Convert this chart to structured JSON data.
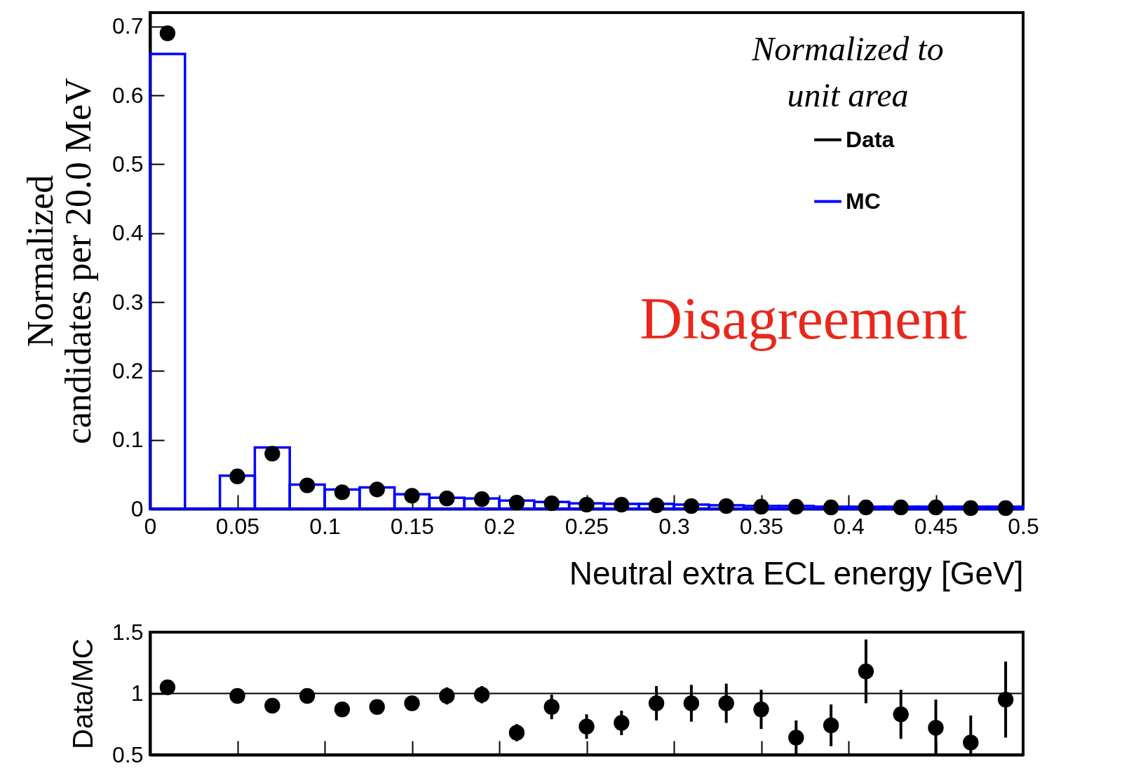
{
  "chart_data": [
    {
      "type": "histogram",
      "xlabel": "Neutral extra ECL energy [GeV]",
      "ylabel": "Normalized\ncandidates per 20.0 MeV",
      "bins": [
        0,
        0.02,
        0.04,
        0.06,
        0.08,
        0.1,
        0.12,
        0.14,
        0.16,
        0.18,
        0.2,
        0.22,
        0.24,
        0.26,
        0.28,
        0.3,
        0.32,
        0.34,
        0.36,
        0.38,
        0.4,
        0.42,
        0.44,
        0.46,
        0.48,
        0.5
      ],
      "series": [
        {
          "name": "Data",
          "type": "scatter",
          "color": "#000000",
          "x": [
            0.01,
            0.05,
            0.07,
            0.09,
            0.11,
            0.13,
            0.15,
            0.17,
            0.19,
            0.21,
            0.23,
            0.25,
            0.27,
            0.29,
            0.31,
            0.33,
            0.35,
            0.37,
            0.39,
            0.41,
            0.43,
            0.45,
            0.47,
            0.49
          ],
          "values": [
            0.69,
            0.047,
            0.08,
            0.034,
            0.024,
            0.028,
            0.019,
            0.015,
            0.014,
            0.009,
            0.008,
            0.006,
            0.006,
            0.005,
            0.004,
            0.004,
            0.003,
            0.003,
            0.002,
            0.002,
            0.002,
            0.002,
            0.001,
            0.001
          ]
        },
        {
          "name": "MC",
          "type": "histogram",
          "color": "#0000ff",
          "values": [
            0.66,
            0,
            0.048,
            0.089,
            0.035,
            0.028,
            0.031,
            0.021,
            0.016,
            0.015,
            0.012,
            0.01,
            0.008,
            0.007,
            0.007,
            0.006,
            0.005,
            0.004,
            0.004,
            0.003,
            0.003,
            0.003,
            0.003,
            0.003,
            0.003
          ]
        }
      ],
      "xlim": [
        0,
        0.5
      ],
      "xticks": [
        0,
        0.05,
        0.1,
        0.15,
        0.2,
        0.25,
        0.3,
        0.35,
        0.4,
        0.45,
        0.5
      ],
      "ylim": [
        0,
        0.72
      ],
      "yticks": [
        0,
        0.1,
        0.2,
        0.3,
        0.4,
        0.5,
        0.6,
        0.7
      ],
      "legend": "top right",
      "marker": "circle",
      "annotations": [
        "Normalized to unit area",
        "Disagreement"
      ]
    },
    {
      "type": "scatter",
      "ylabel": "Data/MC",
      "x": [
        0.01,
        0.05,
        0.07,
        0.09,
        0.11,
        0.13,
        0.15,
        0.17,
        0.19,
        0.21,
        0.23,
        0.25,
        0.27,
        0.29,
        0.31,
        0.33,
        0.35,
        0.37,
        0.39,
        0.41,
        0.43,
        0.45,
        0.47,
        0.49
      ],
      "series": [
        {
          "color": "#000000",
          "values": [
            1.05,
            0.98,
            0.9,
            0.98,
            0.87,
            0.89,
            0.92,
            0.98,
            0.99,
            0.68,
            0.89,
            0.73,
            0.76,
            0.92,
            0.92,
            0.92,
            0.87,
            0.64,
            0.74,
            1.18,
            0.83,
            0.72,
            0.6,
            0.95
          ],
          "errors": [
            0.01,
            0.02,
            0.02,
            0.03,
            0.03,
            0.03,
            0.04,
            0.07,
            0.07,
            0.07,
            0.1,
            0.1,
            0.1,
            0.14,
            0.15,
            0.16,
            0.16,
            0.14,
            0.17,
            0.26,
            0.2,
            [
              0.5,
              0.95
            ],
            [
              0.5,
              0.82
            ],
            0.31
          ]
        }
      ],
      "xlim": [
        0,
        0.5
      ],
      "xticks": [
        0,
        0.05,
        0.1,
        0.15,
        0.2,
        0.25,
        0.3,
        0.35,
        0.4,
        0.45,
        0.5
      ],
      "ylim": [
        0.5,
        1.5
      ],
      "yticks": [
        0.5,
        1,
        1.5
      ],
      "tick_labels": "y",
      "marker": "circle",
      "ref_lines": [
        {
          "axis": "y",
          "value": 1,
          "color": "#000000"
        }
      ]
    }
  ]
}
